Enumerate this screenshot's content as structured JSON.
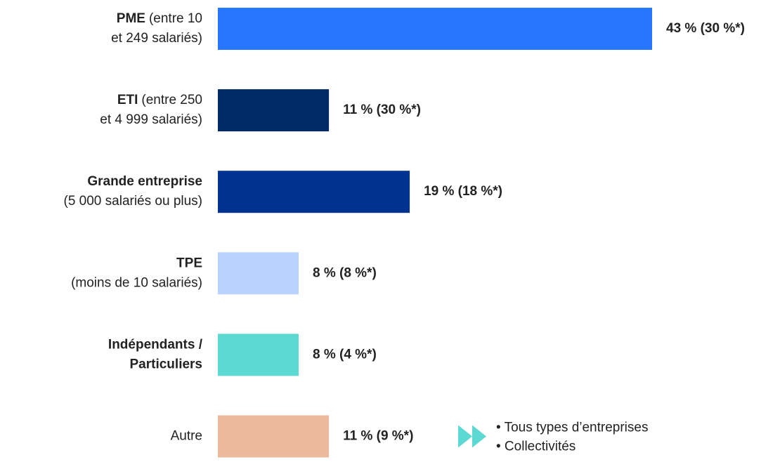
{
  "chart_data": {
    "type": "hbar",
    "categories": [
      {
        "lines": [
          [
            {
              "text": "PME",
              "bold": true
            },
            {
              "text": "(entre 10"
            }
          ],
          [
            {
              "text": "et 249 salariés)"
            }
          ]
        ]
      },
      {
        "lines": [
          [
            {
              "text": "ETI",
              "bold": true
            },
            {
              "text": "(entre 250"
            }
          ],
          [
            {
              "text": "et 4 999 salariés)"
            }
          ]
        ]
      },
      {
        "lines": [
          [
            {
              "text": "Grande entreprise",
              "bold": true
            }
          ],
          [
            {
              "text": "(5 000 salariés ou plus)"
            }
          ]
        ]
      },
      {
        "lines": [
          [
            {
              "text": "TPE",
              "bold": true
            }
          ],
          [
            {
              "text": "(moins de 10 salariés)"
            }
          ]
        ]
      },
      {
        "lines": [
          [
            {
              "text": "Indépendants /",
              "bold": true
            }
          ],
          [
            {
              "text": "Particuliers",
              "bold": true
            }
          ]
        ]
      },
      {
        "lines": [
          [
            {
              "text": "Autre"
            }
          ]
        ]
      }
    ],
    "values": [
      43,
      11,
      19,
      8,
      8,
      11
    ],
    "value_labels": [
      "43 % (30 %*)",
      "11 % (30 %*)",
      "19 % (18 %*)",
      "8 % (8 %*)",
      "8 % (4 %*)",
      "11 % (9 %*)"
    ],
    "colors": [
      "#2776fe",
      "#002a66",
      "#003391",
      "#b8d3fd",
      "#5cd9d3",
      "#ebb99c"
    ],
    "xlim": [
      0,
      43
    ],
    "annotation": {
      "color": "#5cd9d3",
      "lines": [
        "• Tous types d’entreprises",
        "• Collectivités"
      ]
    }
  }
}
